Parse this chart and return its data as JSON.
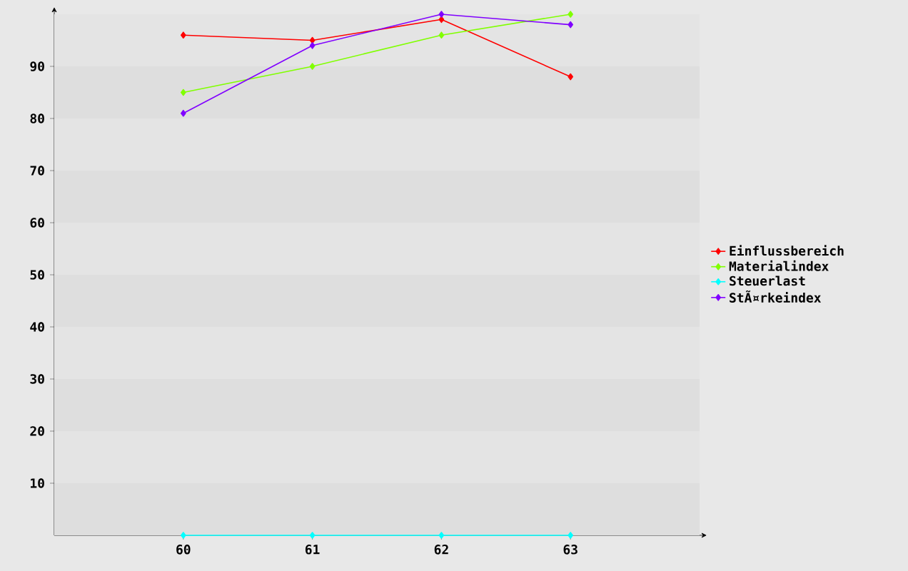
{
  "chart_data": {
    "type": "line",
    "categories": [
      "60",
      "61",
      "62",
      "63"
    ],
    "series": [
      {
        "name": "Einflussbereich",
        "color": "#ff0000",
        "values": [
          96,
          95,
          99,
          88
        ]
      },
      {
        "name": "Materialindex",
        "color": "#80ff00",
        "values": [
          85,
          90,
          96,
          100
        ]
      },
      {
        "name": "Steuerlast",
        "color": "#00ffff",
        "values": [
          0,
          0,
          0,
          0
        ]
      },
      {
        "name": "StÃ¤rkeindex",
        "color": "#8000ff",
        "values": [
          81,
          94,
          100,
          98
        ]
      }
    ],
    "ylim": [
      0,
      100
    ],
    "yticks": [
      10,
      20,
      30,
      40,
      50,
      60,
      70,
      80,
      90
    ],
    "bands": [
      {
        "axis": "y",
        "from": 0,
        "to": 10,
        "color": "#dedede"
      },
      {
        "axis": "y",
        "from": 20,
        "to": 30,
        "color": "#dedede"
      },
      {
        "axis": "y",
        "from": 40,
        "to": 50,
        "color": "#dedede"
      },
      {
        "axis": "y",
        "from": 60,
        "to": 70,
        "color": "#dedede"
      },
      {
        "axis": "y",
        "from": 80,
        "to": 90,
        "color": "#dedede"
      }
    ],
    "legend": "right",
    "marker": "diamond",
    "line_style": "solid"
  }
}
